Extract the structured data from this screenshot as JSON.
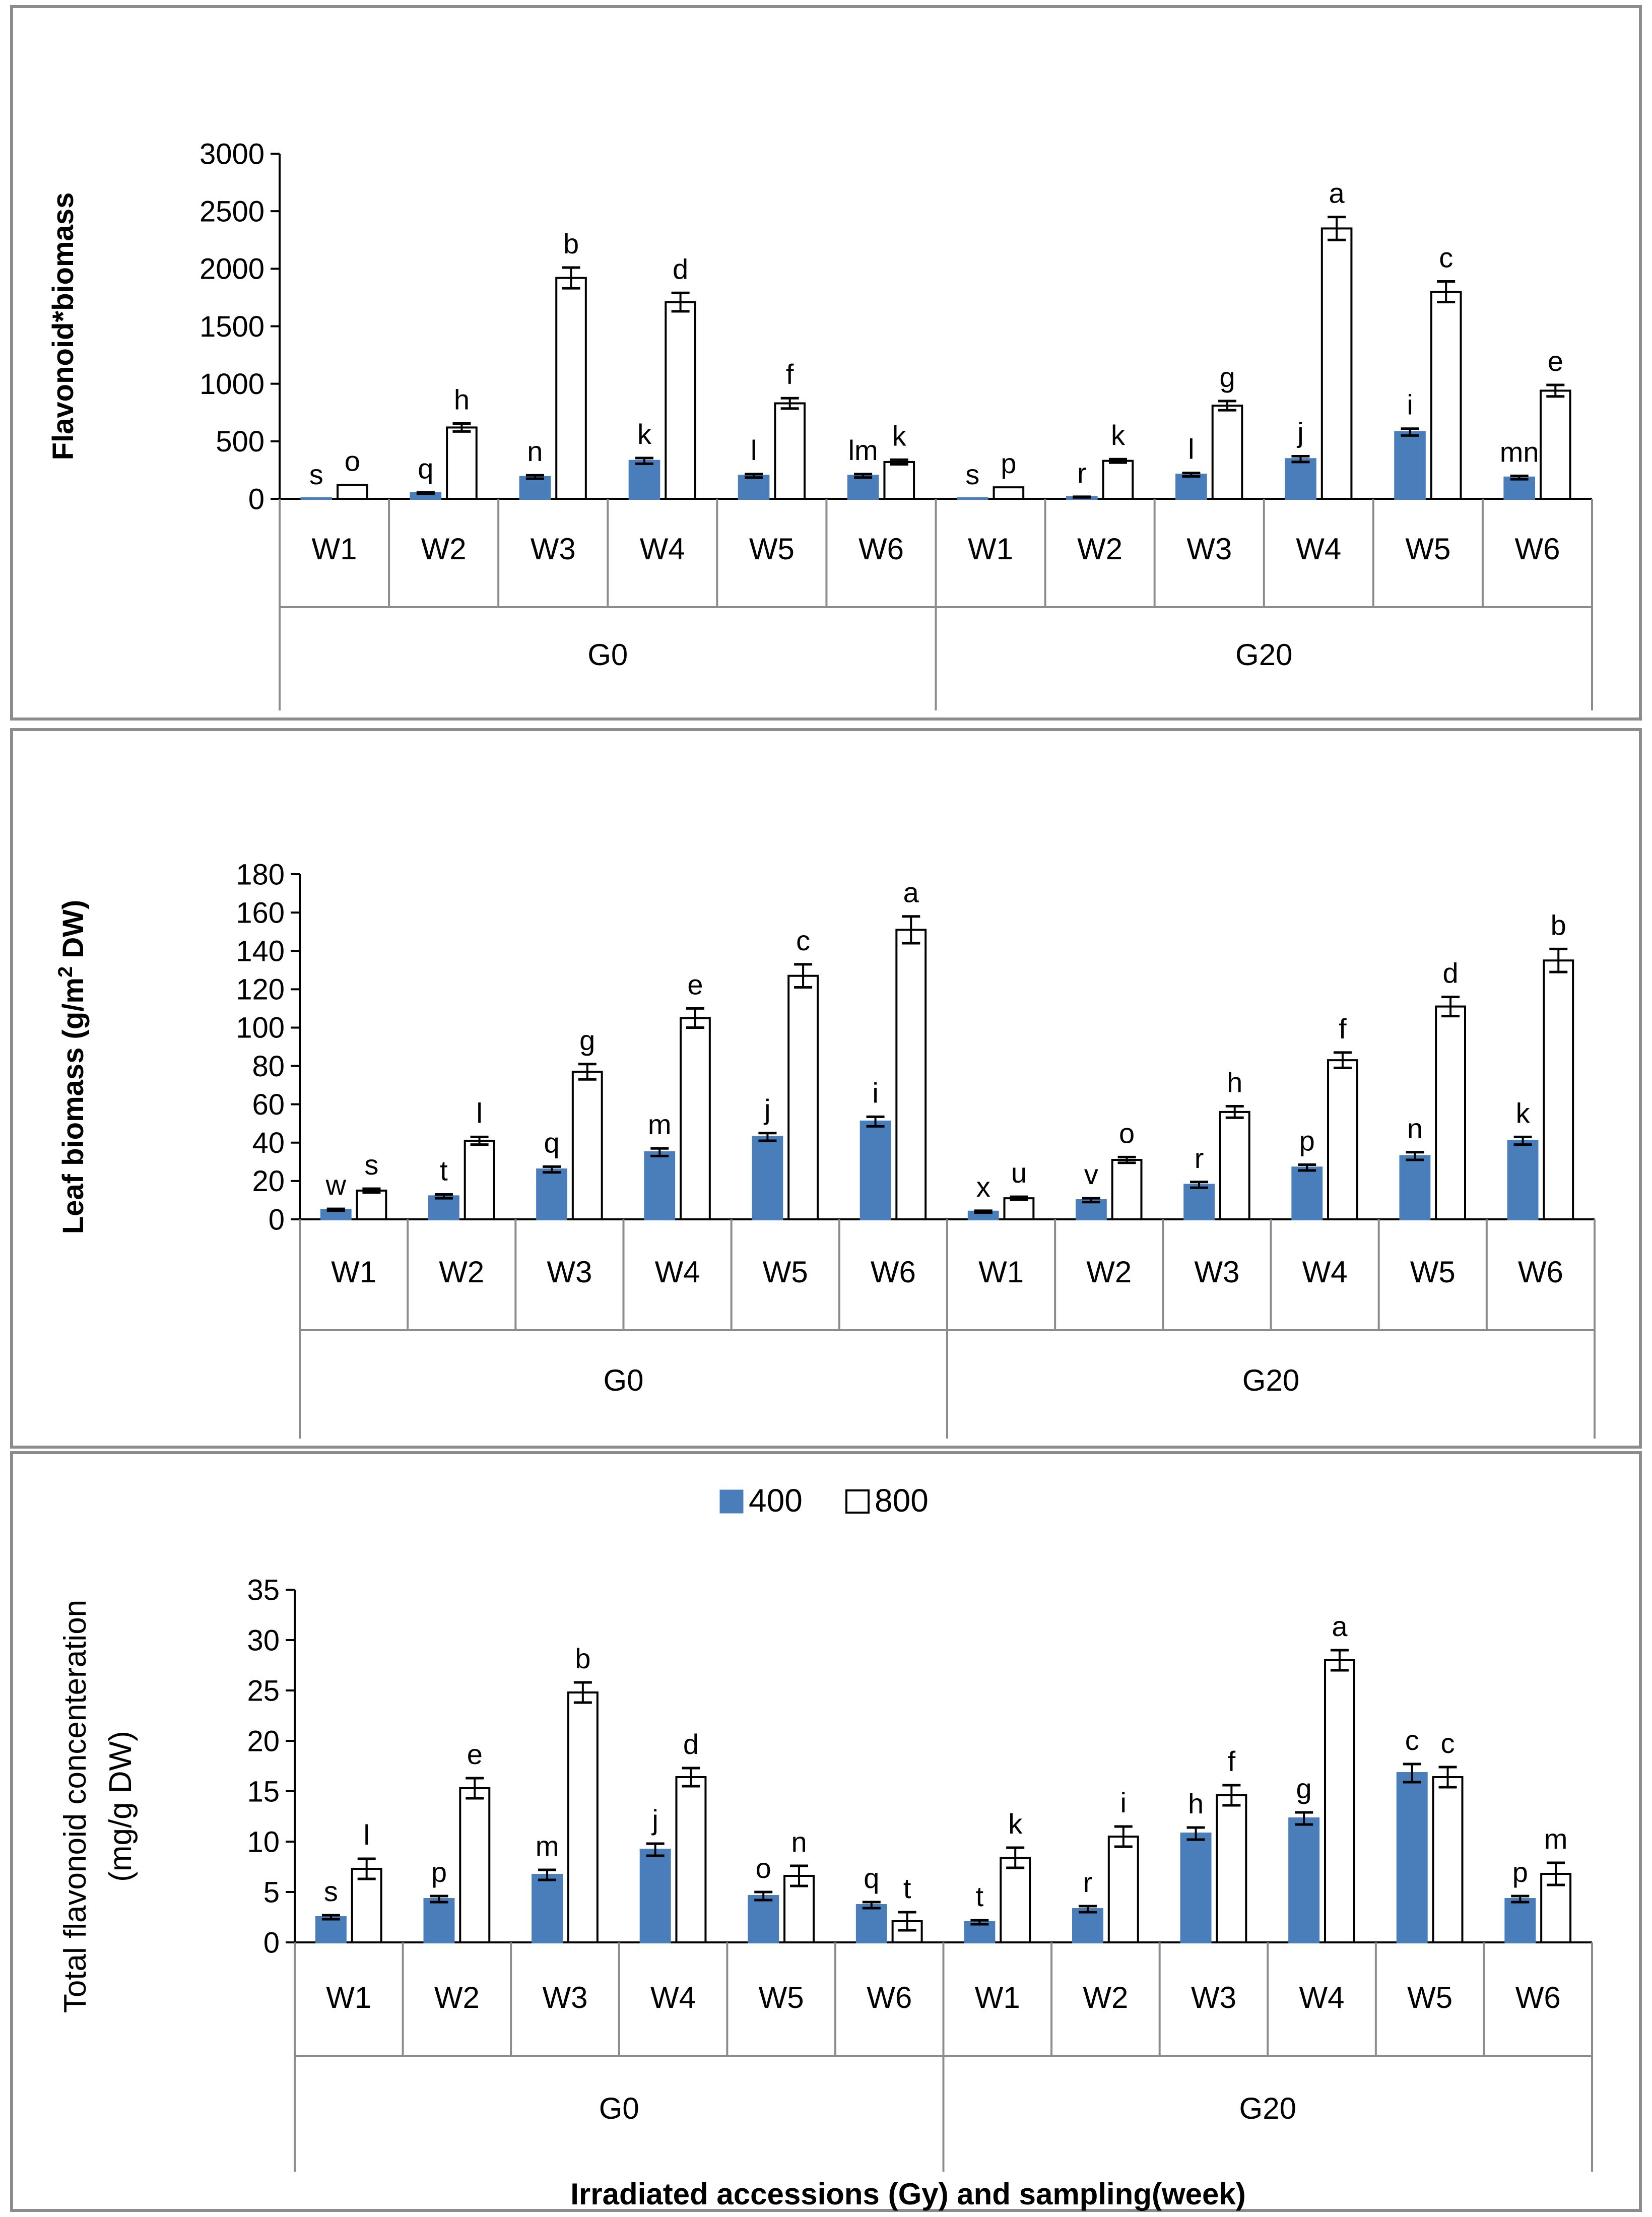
{
  "colors": {
    "series_400": "#4a7ebb",
    "series_800": "#ffffff",
    "bar_outline": "#000000",
    "axis": "#000000",
    "group_lines": "#8c8c8c"
  },
  "chart_data": [
    {
      "type": "bar",
      "ylabel": "Flavonoid*biomass",
      "ylim": [
        0,
        3000
      ],
      "yticks": [
        0,
        500,
        1000,
        1500,
        2000,
        2500,
        3000
      ],
      "groups": [
        "G0",
        "G20"
      ],
      "categories": [
        "W1",
        "W2",
        "W3",
        "W4",
        "W5",
        "W6",
        "W1",
        "W2",
        "W3",
        "W4",
        "W5",
        "W6"
      ],
      "series": [
        {
          "name": "400",
          "values": [
            5,
            50,
            190,
            330,
            200,
            200,
            5,
            15,
            210,
            345,
            580,
            185
          ],
          "errors": [
            0,
            5,
            15,
            25,
            15,
            15,
            0,
            3,
            15,
            25,
            30,
            15
          ],
          "letters": [
            "s",
            "q",
            "n",
            "k",
            "l",
            "lm",
            "s",
            "r",
            "l",
            "j",
            "i",
            "mn"
          ]
        },
        {
          "name": "800",
          "values": [
            120,
            620,
            1920,
            1710,
            830,
            320,
            100,
            330,
            810,
            2350,
            1800,
            940
          ],
          "errors": [
            0,
            35,
            90,
            80,
            45,
            20,
            0,
            15,
            40,
            100,
            90,
            50
          ],
          "letters": [
            "o",
            "h",
            "b",
            "d",
            "f",
            "k",
            "p",
            "k",
            "g",
            "a",
            "c",
            "e"
          ]
        }
      ]
    },
    {
      "type": "bar",
      "ylabel": "Leaf biomass (g/m",
      "ylabel_sup": "2",
      "ylabel_tail": " DW)",
      "ylim": [
        0,
        180
      ],
      "yticks": [
        0,
        20,
        40,
        60,
        80,
        100,
        120,
        140,
        160,
        180
      ],
      "groups": [
        "G0",
        "G20"
      ],
      "categories": [
        "W1",
        "W2",
        "W3",
        "W4",
        "W5",
        "W6",
        "W1",
        "W2",
        "W3",
        "W4",
        "W5",
        "W6"
      ],
      "series": [
        {
          "name": "400",
          "values": [
            5,
            12,
            26,
            35,
            43,
            51,
            4,
            10,
            18,
            27,
            33,
            41
          ],
          "errors": [
            0.5,
            1,
            1.5,
            2,
            2,
            2.5,
            0.5,
            1,
            1.5,
            1.5,
            2,
            2
          ],
          "letters": [
            "w",
            "t",
            "q",
            "m",
            "j",
            "i",
            "x",
            "v",
            "r",
            "p",
            "n",
            "k"
          ]
        },
        {
          "name": "800",
          "values": [
            15,
            41,
            77,
            105,
            127,
            151,
            11,
            31,
            56,
            83,
            111,
            135
          ],
          "errors": [
            1,
            2,
            4,
            5,
            6,
            7,
            0.8,
            1.5,
            3,
            4,
            5,
            6
          ],
          "letters": [
            "s",
            "l",
            "g",
            "e",
            "c",
            "a",
            "u",
            "o",
            "h",
            "f",
            "d",
            "b"
          ]
        }
      ]
    },
    {
      "type": "bar",
      "legend": [
        "400",
        "800"
      ],
      "ylabel": "Total flavonoid concenteration",
      "ylabel2": "(mg/g DW)",
      "xlabel": "Irradiated accessions (Gy) and sampling(week)",
      "ylim": [
        0,
        35
      ],
      "yticks": [
        0,
        5,
        10,
        15,
        20,
        25,
        30,
        35
      ],
      "groups": [
        "G0",
        "G20"
      ],
      "categories": [
        "W1",
        "W2",
        "W3",
        "W4",
        "W5",
        "W6",
        "W1",
        "W2",
        "W3",
        "W4",
        "W5",
        "W6"
      ],
      "series": [
        {
          "name": "400",
          "values": [
            2.5,
            4.3,
            6.7,
            9.2,
            4.6,
            3.7,
            2.0,
            3.3,
            10.8,
            12.3,
            16.8,
            4.3
          ],
          "errors": [
            0.2,
            0.3,
            0.5,
            0.6,
            0.4,
            0.3,
            0.2,
            0.3,
            0.6,
            0.6,
            0.9,
            0.3
          ],
          "letters": [
            "s",
            "p",
            "m",
            "j",
            "o",
            "q",
            "t",
            "r",
            "h",
            "g",
            "c",
            "p"
          ]
        },
        {
          "name": "800",
          "values": [
            7.3,
            15.3,
            24.8,
            16.4,
            6.6,
            2.1,
            8.4,
            10.5,
            14.6,
            28.0,
            16.4,
            6.8
          ],
          "errors": [
            1.0,
            1.0,
            1.0,
            0.9,
            1.0,
            0.9,
            1.0,
            1.0,
            1.0,
            1.0,
            1.0,
            1.1
          ],
          "letters": [
            "l",
            "e",
            "b",
            "d",
            "n",
            "t",
            "k",
            "i",
            "f",
            "a",
            "c",
            "m"
          ]
        }
      ]
    }
  ]
}
